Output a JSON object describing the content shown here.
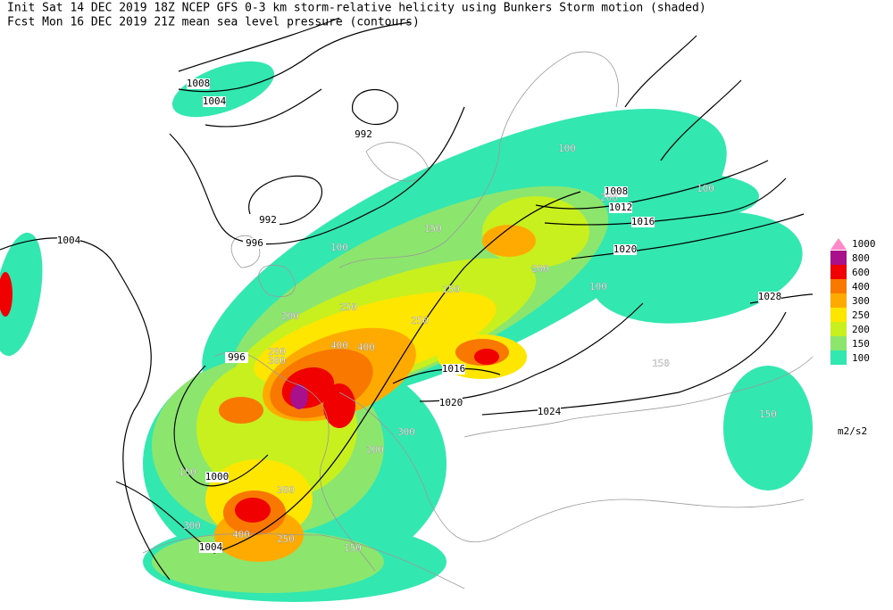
{
  "header": {
    "line1": "Init  Sat 14 DEC 2019 18Z  NCEP GFS 0-3 km storm-relative helicity using Bunkers Storm motion (shaded)",
    "line2": "Fcst Mon 16 DEC 2019 21Z  mean sea level pressure (contours)"
  },
  "legend": {
    "levels": [
      {
        "value": 1000,
        "color": "#ff88c8"
      },
      {
        "value": 800,
        "color": "#a8108c"
      },
      {
        "value": 600,
        "color": "#f00000"
      },
      {
        "value": 400,
        "color": "#f87800"
      },
      {
        "value": 300,
        "color": "#ffaa00"
      },
      {
        "value": 250,
        "color": "#ffe600"
      },
      {
        "value": 200,
        "color": "#c8f01e"
      },
      {
        "value": 150,
        "color": "#8ce66e"
      },
      {
        "value": 100,
        "color": "#32e8b0"
      }
    ],
    "unit": "m2/s2"
  },
  "isobar_labels": [
    "1008",
    "1004",
    "992",
    "992",
    "996",
    "1004",
    "996",
    "1000",
    "1004",
    "1008",
    "1012",
    "1016",
    "1020",
    "1028",
    "1016",
    "1020",
    "1024"
  ],
  "shading_labels": [
    "100",
    "100",
    "150",
    "200",
    "100",
    "150",
    "250",
    "200",
    "400",
    "300",
    "200",
    "250",
    "150",
    "200",
    "300",
    "400",
    "150",
    "300",
    "250",
    "400",
    "200",
    "300",
    "150",
    "100",
    "150"
  ]
}
